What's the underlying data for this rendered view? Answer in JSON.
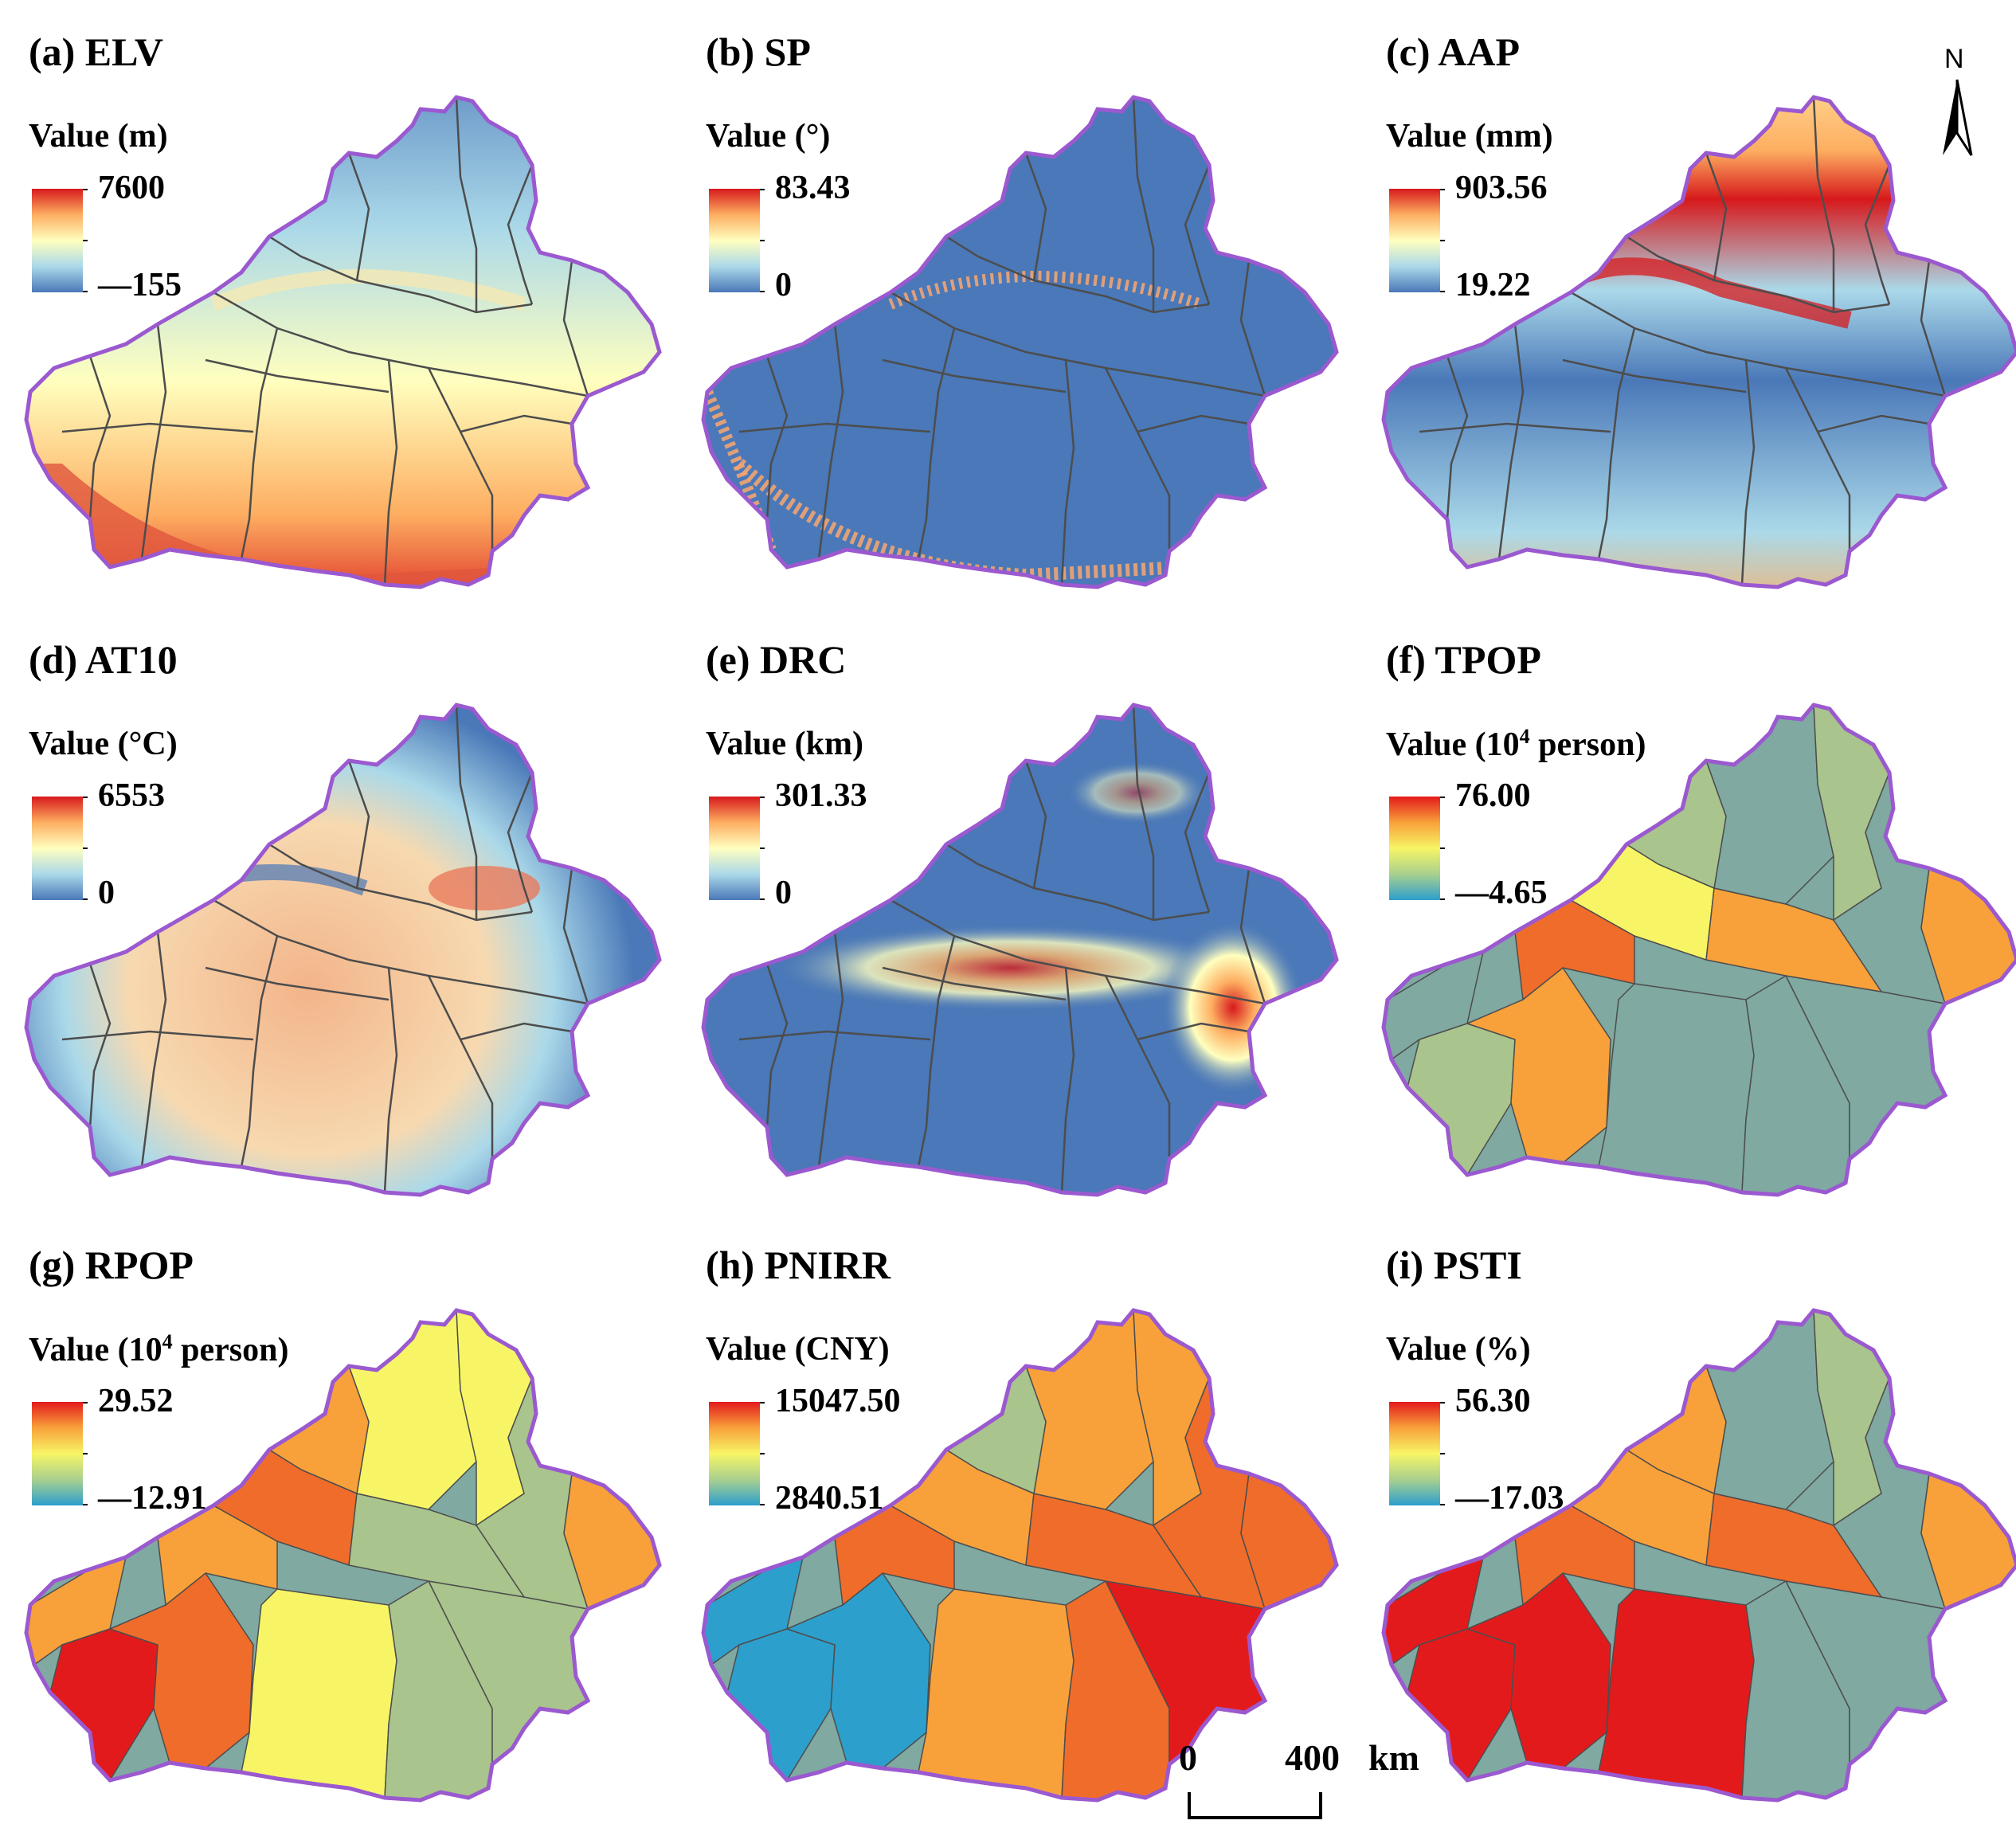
{
  "panels": [
    {
      "title": "(a) ELV",
      "value_label": "Value (m)",
      "legend_max": "7600",
      "legend_min": "—155",
      "palette": "rdylbu",
      "style": "elev"
    },
    {
      "title": "(b) SP",
      "value_label": "Value (°)",
      "legend_max": "83.43",
      "legend_min": "0",
      "palette": "rdylbu",
      "style": "slope"
    },
    {
      "title": "(c) AAP",
      "value_label": "Value (mm)",
      "legend_max": "903.56",
      "legend_min": "19.22",
      "palette": "rdylbu",
      "style": "precip"
    },
    {
      "title": "(d) AT10",
      "value_label": "Value (°C)",
      "legend_max": "6553",
      "legend_min": "0",
      "palette": "rdylbu",
      "style": "temp"
    },
    {
      "title": "(e) DRC",
      "value_label": "Value (km)",
      "legend_max": "301.33",
      "legend_min": "0",
      "palette": "rdylbu",
      "style": "distance"
    },
    {
      "title": "(f) TPOP",
      "value_label_main": "Value (10",
      "value_label_sup": "4",
      "value_label_rest": " person)",
      "legend_max": "76.00",
      "legend_min": "—4.65",
      "palette": "rdylgnb",
      "style": "zones"
    },
    {
      "title": "(g) RPOP",
      "value_label_main": "Value (10",
      "value_label_sup": "4",
      "value_label_rest": " person)",
      "legend_max": "29.52",
      "legend_min": "—12.91",
      "palette": "rdylgnb",
      "style": "zones"
    },
    {
      "title": "(h) PNIRR",
      "value_label": "Value (CNY)",
      "legend_max": "15047.50",
      "legend_min": "2840.51",
      "palette": "rdylgnb",
      "style": "zones"
    },
    {
      "title": "(i) PSTI",
      "value_label": "Value (%)",
      "legend_max": "56.30",
      "legend_min": "—17.03",
      "palette": "rdylgnb",
      "style": "zones"
    }
  ],
  "north_arrow": {
    "letter": "N"
  },
  "scale_bar": {
    "start": "0",
    "end": "400",
    "unit": "km"
  },
  "colors": {
    "boundary": "#9b59d0",
    "county_lines": "#4d4d4d",
    "rdylbu": [
      "#d7191c",
      "#fdae61",
      "#ffffbf",
      "#abd9e9",
      "#4a78b8"
    ],
    "rdylgnb": [
      "#e31a1c",
      "#f8a13a",
      "#f7f565",
      "#a9d08e",
      "#2c9fcd"
    ],
    "zone_fills": [
      "#7fa9a1",
      "#a9c48c",
      "#f7f565",
      "#f8a13a",
      "#f06c2a",
      "#e31a1c",
      "#2c9fcd"
    ]
  }
}
